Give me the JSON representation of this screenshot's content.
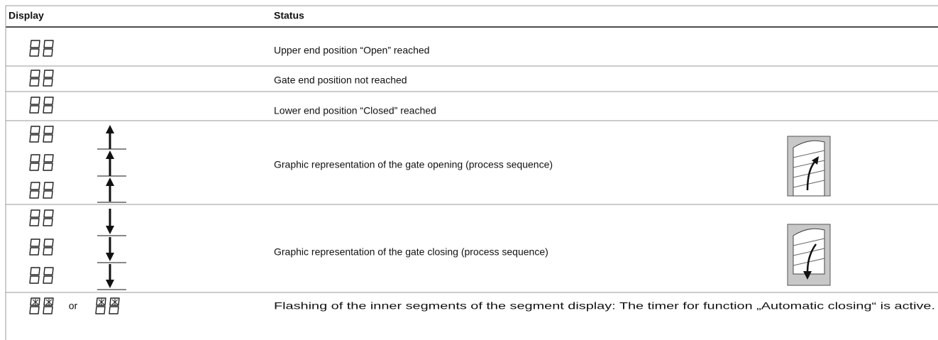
{
  "header": {
    "display": "Display",
    "status": "Status"
  },
  "rows": [
    {
      "status": "Upper end position “Open” reached"
    },
    {
      "status": "Gate end position not reached"
    },
    {
      "status": "Lower end position “Closed” reached"
    },
    {
      "status": "Graphic representation of the gate opening (process sequence)"
    },
    {
      "status": "Graphic representation of the gate closing (process sequence)"
    },
    {
      "display_text": "or",
      "status": "Flashing of the inner segments of the segment display: The timer for function „Automatic closing“ is active."
    }
  ]
}
